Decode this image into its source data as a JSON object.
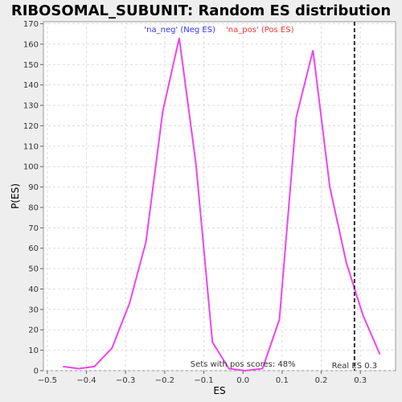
{
  "chart_data": {
    "type": "line",
    "title": "RIBOSOMAL_SUBUNIT: Random ES distribution",
    "xlabel": "ES",
    "ylabel": "P(ES)",
    "xlim": [
      -0.51,
      0.39
    ],
    "ylim": [
      0,
      171
    ],
    "x_ticks": [
      -0.5,
      -0.4,
      -0.3,
      -0.2,
      -0.1,
      0.0,
      0.1,
      0.2,
      0.3
    ],
    "x_tick_labels": [
      "−0.5",
      "−0.4",
      "−0.3",
      "−0.2",
      "−0.1",
      "0.0",
      "0.1",
      "0.2",
      "0.3"
    ],
    "y_ticks": [
      0,
      10,
      20,
      30,
      40,
      50,
      60,
      70,
      80,
      90,
      100,
      110,
      120,
      130,
      140,
      150,
      160,
      170
    ],
    "grid": true,
    "legend": {
      "placement": "top-center",
      "entries": [
        {
          "label": "'na_neg' (Neg ES)",
          "color": "#3333ff"
        },
        {
          "label": "'na_pos' (Pos ES)",
          "color": "#ff3333"
        }
      ]
    },
    "series": [
      {
        "color": "#ee44ee",
        "x": [
          -0.46,
          -0.42,
          -0.38,
          -0.335,
          -0.29,
          -0.248,
          -0.205,
          -0.163,
          -0.12,
          -0.078,
          -0.036,
          0.006,
          0.05,
          0.093,
          0.136,
          0.179,
          0.222,
          0.264,
          0.307,
          0.35
        ],
        "y": [
          2,
          1,
          2,
          11,
          33,
          63,
          127,
          163,
          101,
          14,
          1,
          0,
          1,
          25,
          124,
          157,
          90,
          53,
          27,
          8
        ]
      }
    ],
    "annotations": [
      {
        "type": "vline",
        "x": 0.285,
        "label": "Real ES 0.3",
        "style": "dashed",
        "color": "#333333"
      },
      {
        "type": "text",
        "label": "Sets with pos scores: 48%",
        "x": 0.0
      }
    ]
  }
}
